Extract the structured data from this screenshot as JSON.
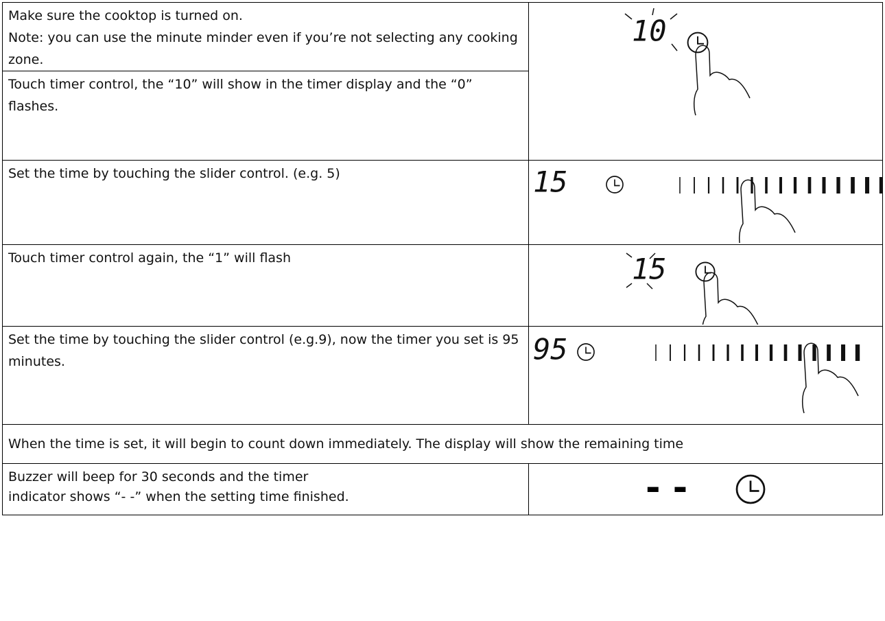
{
  "rows": [
    {
      "text": [
        "Make sure the cooktop is turned on.",
        "Note: you can use the minute minder even if you’re not selecting any cooking zone."
      ],
      "display": "10"
    },
    {
      "text": [
        "Touch timer control, the “10” will show in the timer display and the “0” flashes."
      ]
    },
    {
      "text": [
        "Set the time by touching the slider control. (e.g. 5)"
      ],
      "display": "15"
    },
    {
      "text": [
        "Touch timer control again, the “1” will flash"
      ],
      "display": "15"
    },
    {
      "text": [
        "Set the time by touching the slider control (e.g.9), now the timer you set is 95 minutes."
      ],
      "display": "95"
    },
    {
      "text": [
        "When the time is set, it will begin to count down immediately. The display will show the remaining time"
      ]
    },
    {
      "text": [
        "Buzzer will beep for 30 seconds and the timer",
        "indicator shows “- -” when the setting time finished."
      ],
      "display": "- -"
    }
  ]
}
